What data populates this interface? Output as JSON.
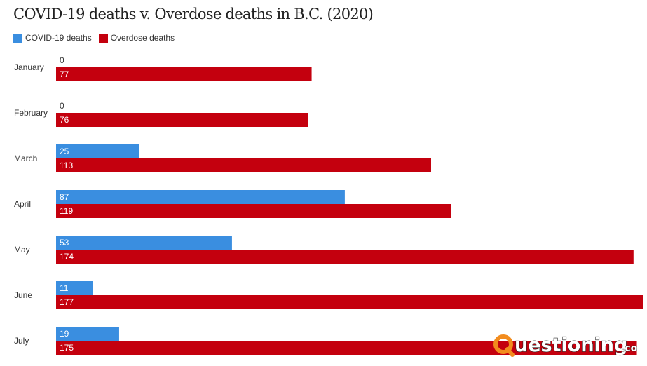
{
  "chart_data": {
    "type": "bar",
    "orientation": "horizontal",
    "title": "COVID-19 deaths v. Overdose deaths in B.C. (2020)",
    "categories": [
      "January",
      "February",
      "March",
      "April",
      "May",
      "June",
      "July"
    ],
    "series": [
      {
        "name": "COVID-19 deaths",
        "color": "#3a8ee0",
        "values": [
          0,
          0,
          25,
          87,
          53,
          11,
          19
        ]
      },
      {
        "name": "Overdose deaths",
        "color": "#c4000e",
        "values": [
          77,
          76,
          113,
          119,
          174,
          177,
          175
        ]
      }
    ],
    "xlim": [
      0,
      177
    ],
    "grid": false,
    "legend_position": "top-left",
    "data_labels": true
  },
  "watermark": {
    "text": "Questioning.co",
    "accent": "#f28c1e"
  }
}
